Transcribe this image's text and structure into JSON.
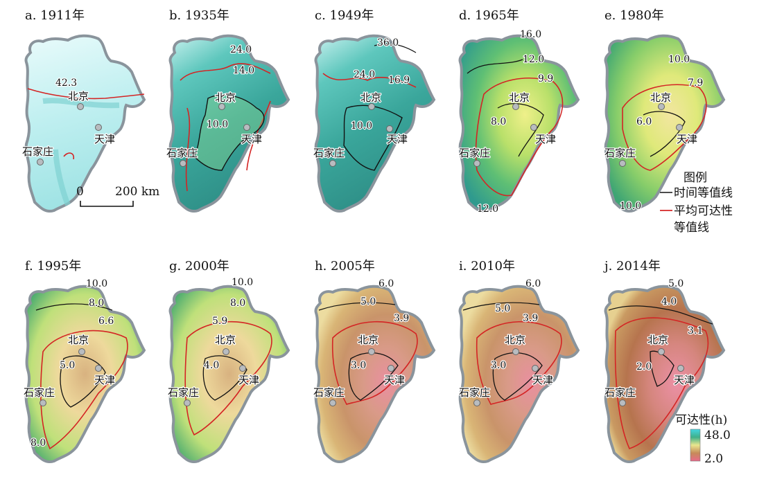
{
  "panels": [
    {
      "title": "a. 1911年",
      "palette": "cyan",
      "labels": [
        "42.3"
      ]
    },
    {
      "title": "b. 1935年",
      "palette": "teal",
      "labels": [
        "24.0",
        "14.0",
        "10.0"
      ]
    },
    {
      "title": "c. 1949年",
      "palette": "teal",
      "labels": [
        "36.0",
        "24.0",
        "16.9",
        "10.0"
      ]
    },
    {
      "title": "d. 1965年",
      "palette": "green",
      "labels": [
        "16.0",
        "12.0",
        "9.9",
        "8.0",
        "12.0"
      ]
    },
    {
      "title": "e. 1980年",
      "palette": "lime",
      "labels": [
        "10.0",
        "7.9",
        "6.0",
        "10.0"
      ]
    },
    {
      "title": "f. 1995年",
      "palette": "yellow",
      "labels": [
        "10.0",
        "8.0",
        "6.6",
        "5.0",
        "8.0"
      ]
    },
    {
      "title": "g. 2000年",
      "palette": "yellow",
      "labels": [
        "10.0",
        "8.0",
        "5.9",
        "4.0"
      ]
    },
    {
      "title": "h. 2005年",
      "palette": "tan",
      "labels": [
        "6.0",
        "5.0",
        "3.9",
        "3.0"
      ]
    },
    {
      "title": "i. 2010年",
      "palette": "tan",
      "labels": [
        "6.0",
        "5.0",
        "3.9",
        "3.0"
      ]
    },
    {
      "title": "j. 2014年",
      "palette": "brown",
      "labels": [
        "5.0",
        "4.0",
        "3.1",
        "2.0"
      ]
    }
  ],
  "cities": {
    "beijing": "北京",
    "tianjin": "天津",
    "shijiazhuang": "石家庄"
  },
  "scalebar": {
    "zero": "0",
    "distance": "200 km"
  },
  "legend": {
    "title": "图例",
    "time_isoline": "时间等值线",
    "avg_isoline_1": "平均可达性",
    "avg_isoline_2": "等值线",
    "time_color": "#111111",
    "avg_color": "#d42424"
  },
  "colorbar": {
    "title": "可达性(h)",
    "max": "48.0",
    "min": "2.0"
  },
  "colors": {
    "border": "#8a949c",
    "inner": "#b4bcc2"
  }
}
